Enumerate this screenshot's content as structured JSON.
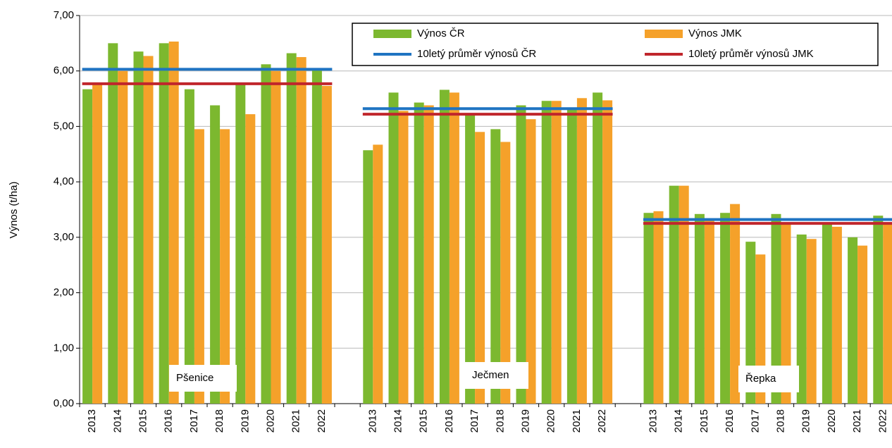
{
  "chart_data": {
    "type": "bar",
    "y_label": "Výnos (t/ha)",
    "categories": [
      "2013",
      "2014",
      "2015",
      "2016",
      "2017",
      "2018",
      "2019",
      "2020",
      "2021",
      "2022",
      null,
      "2013",
      "2014",
      "2015",
      "2016",
      "2017",
      "2018",
      "2019",
      "2020",
      "2021",
      "2022",
      null,
      "2013",
      "2014",
      "2015",
      "2016",
      "2017",
      "2018",
      "2019",
      "2020",
      "2021",
      "2022"
    ],
    "series": [
      {
        "name": "Výnos ČR",
        "color": "#7cb82f",
        "type": "bar",
        "values": [
          5.67,
          6.5,
          6.35,
          6.5,
          5.67,
          5.38,
          5.78,
          6.12,
          6.32,
          6.05,
          null,
          4.57,
          5.61,
          5.43,
          5.66,
          5.2,
          4.95,
          5.38,
          5.46,
          5.33,
          5.61,
          null,
          3.44,
          3.93,
          3.42,
          3.44,
          2.92,
          3.42,
          3.05,
          3.25,
          3.0,
          3.39
        ]
      },
      {
        "name": "Výnos JMK",
        "color": "#f5a12a",
        "type": "bar",
        "values": [
          5.75,
          6.0,
          6.27,
          6.53,
          4.95,
          4.95,
          5.22,
          6.0,
          6.25,
          5.73,
          null,
          4.67,
          5.28,
          5.38,
          5.61,
          4.9,
          4.72,
          5.13,
          5.46,
          5.51,
          5.47,
          null,
          3.47,
          3.93,
          3.3,
          3.6,
          2.69,
          3.27,
          2.97,
          3.19,
          2.85,
          3.27
        ]
      },
      {
        "name": "10letý průměr výnosů ČR",
        "color": "#1f74c2",
        "type": "line",
        "values": [
          6.03,
          6.03,
          6.03,
          6.03,
          6.03,
          6.03,
          6.03,
          6.03,
          6.03,
          6.03,
          null,
          5.32,
          5.32,
          5.32,
          5.32,
          5.32,
          5.32,
          5.32,
          5.32,
          5.32,
          5.32,
          null,
          3.32,
          3.32,
          3.32,
          3.32,
          3.32,
          3.32,
          3.32,
          3.32,
          3.32,
          3.32
        ]
      },
      {
        "name": "10letý průměr výnosů JMK",
        "color": "#c0262c",
        "type": "line",
        "values": [
          5.77,
          5.77,
          5.77,
          5.77,
          5.77,
          5.77,
          5.77,
          5.77,
          5.77,
          5.77,
          null,
          5.22,
          5.22,
          5.22,
          5.22,
          5.22,
          5.22,
          5.22,
          5.22,
          5.22,
          5.22,
          null,
          3.25,
          3.25,
          3.25,
          3.25,
          3.25,
          3.25,
          3.25,
          3.25,
          3.25,
          3.25
        ]
      }
    ],
    "annotations": [
      "Pšenice",
      "Ječmen",
      "Řepka"
    ],
    "ylim": [
      0,
      7
    ],
    "yticks": [
      {
        "value": 0,
        "label": "0,00"
      },
      {
        "value": 1,
        "label": "1,00"
      },
      {
        "value": 2,
        "label": "2,00"
      },
      {
        "value": 3,
        "label": "3,00"
      },
      {
        "value": 4,
        "label": "4,00"
      },
      {
        "value": 5,
        "label": "5,00"
      },
      {
        "value": 6,
        "label": "6,00"
      },
      {
        "value": 7,
        "label": "7,00"
      }
    ],
    "grid": true
  }
}
